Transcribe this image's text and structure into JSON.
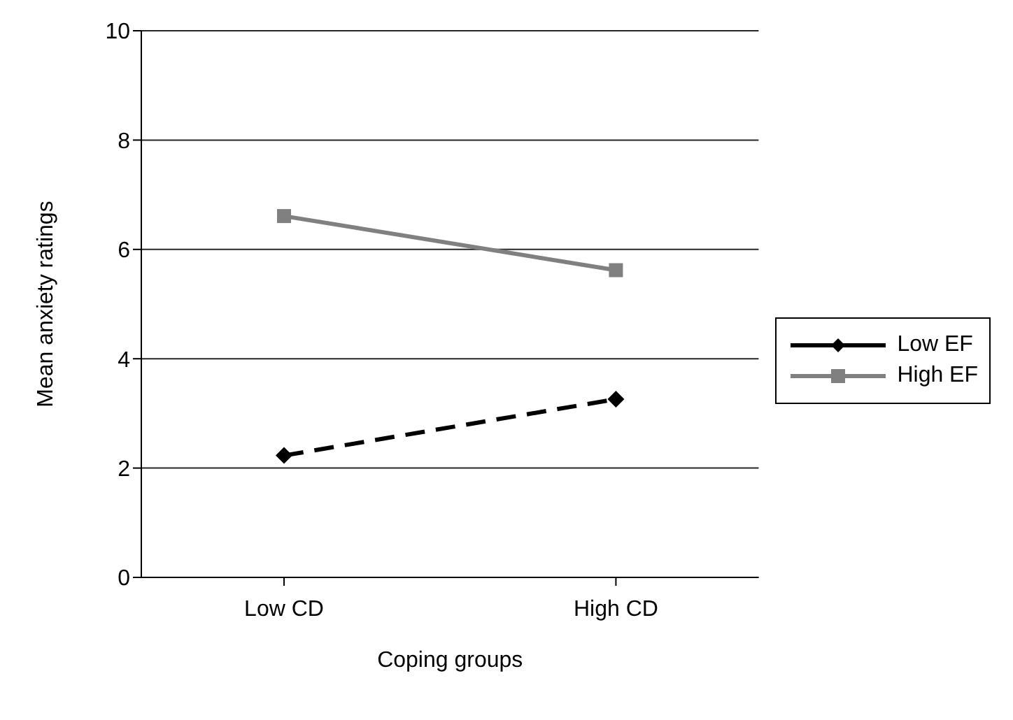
{
  "chart_data": {
    "type": "line",
    "xlabel": "Coping groups",
    "ylabel": "Mean anxiety ratings",
    "categories": [
      "Low CD",
      "High CD"
    ],
    "series": [
      {
        "name": "Low EF",
        "color": "#000000",
        "values": [
          2.23,
          3.26
        ],
        "marker": "diamond",
        "line_style": "dashed"
      },
      {
        "name": "High EF",
        "color": "#808080",
        "values": [
          6.61,
          5.62
        ],
        "marker": "square",
        "line_style": "solid"
      }
    ],
    "ylim": [
      0,
      10
    ],
    "yticks": [
      0,
      2,
      4,
      6,
      8,
      10
    ],
    "grid": "y",
    "legend": "right"
  }
}
